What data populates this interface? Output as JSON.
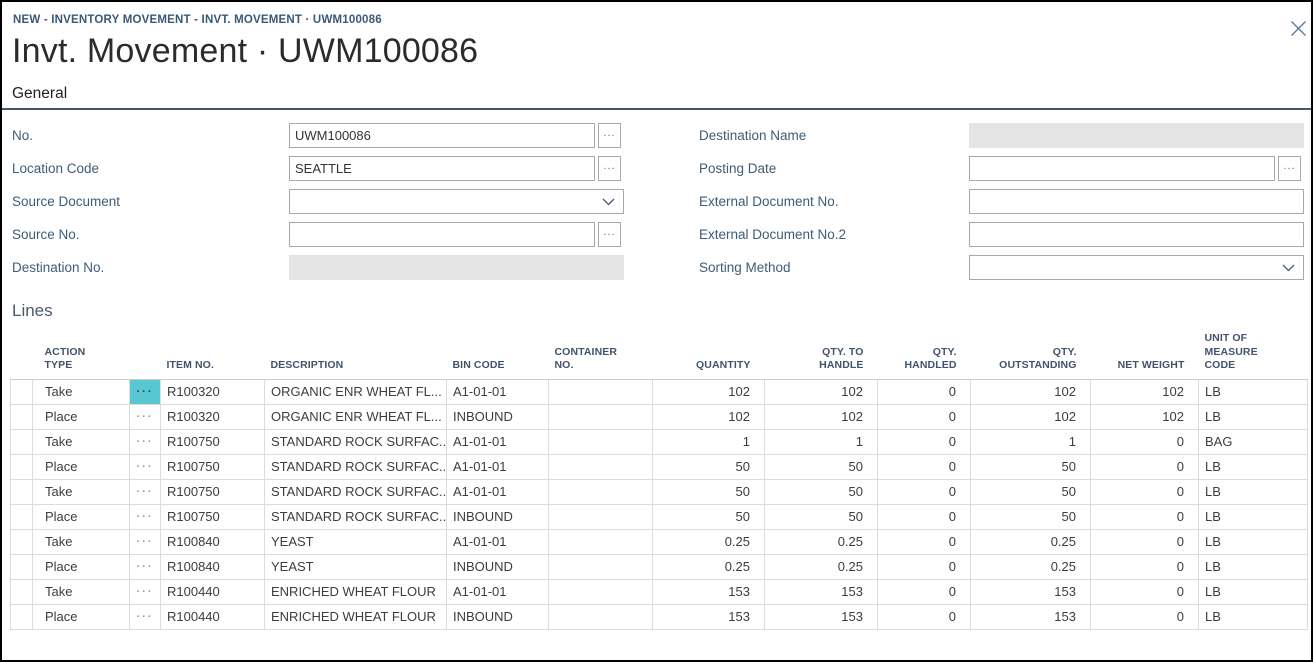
{
  "window": {
    "breadcrumb": "NEW - INVENTORY MOVEMENT - INVT. MOVEMENT · UWM100086",
    "page_title": "Invt. Movement · UWM100086",
    "close_icon": "x"
  },
  "general": {
    "section_title": "General",
    "assist_glyph": "...",
    "fields_left": [
      {
        "label": "No.",
        "value": "UWM100086",
        "type": "assist",
        "name": "no-field"
      },
      {
        "label": "Location Code",
        "value": "SEATTLE",
        "type": "assist",
        "name": "location-code-field"
      },
      {
        "label": "Source Document",
        "value": "",
        "type": "dropdown",
        "name": "source-document-select"
      },
      {
        "label": "Source No.",
        "value": "",
        "type": "assist",
        "name": "source-no-field"
      },
      {
        "label": "Destination No.",
        "value": "",
        "type": "disabled",
        "name": "destination-no-field"
      }
    ],
    "fields_right": [
      {
        "label": "Destination Name",
        "value": "",
        "type": "disabled",
        "name": "destination-name-field"
      },
      {
        "label": "Posting Date",
        "value": "",
        "type": "assist",
        "name": "posting-date-field"
      },
      {
        "label": "External Document No.",
        "value": "",
        "type": "text",
        "name": "external-document-no-field"
      },
      {
        "label": "External Document No.2",
        "value": "",
        "type": "text",
        "name": "external-document-no-2-field"
      },
      {
        "label": "Sorting Method",
        "value": "",
        "type": "dropdown",
        "name": "sorting-method-select"
      }
    ]
  },
  "lines": {
    "section_title": "Lines",
    "options_glyph": "···",
    "columns": [
      {
        "key": "action",
        "label": "ACTION\nTYPE"
      },
      {
        "key": "item",
        "label": "ITEM NO."
      },
      {
        "key": "desc",
        "label": "DESCRIPTION"
      },
      {
        "key": "bin",
        "label": "BIN CODE"
      },
      {
        "key": "container",
        "label": "CONTAINER\nNO."
      },
      {
        "key": "quantity",
        "label": "QUANTITY"
      },
      {
        "key": "qty_to_handle",
        "label": "QTY. TO\nHANDLE"
      },
      {
        "key": "qty_handled",
        "label": "QTY.\nHANDLED"
      },
      {
        "key": "qty_outstanding",
        "label": "QTY.\nOUTSTANDING"
      },
      {
        "key": "net_weight",
        "label": "NET WEIGHT"
      },
      {
        "key": "uom",
        "label": "UNIT OF\nMEASURE\nCODE"
      }
    ],
    "rows": [
      {
        "action": "Take",
        "item": "R100320",
        "desc": "ORGANIC ENR WHEAT FL...",
        "bin": "A1-01-01",
        "container": "",
        "quantity": "102",
        "qty_to_handle": "102",
        "qty_handled": "0",
        "qty_outstanding": "102",
        "net_weight": "102",
        "uom": "LB",
        "highlighted": true
      },
      {
        "action": "Place",
        "item": "R100320",
        "desc": "ORGANIC ENR WHEAT FL...",
        "bin": "INBOUND",
        "container": "",
        "quantity": "102",
        "qty_to_handle": "102",
        "qty_handled": "0",
        "qty_outstanding": "102",
        "net_weight": "102",
        "uom": "LB",
        "highlighted": false
      },
      {
        "action": "Take",
        "item": "R100750",
        "desc": "STANDARD ROCK SURFAC...",
        "bin": "A1-01-01",
        "container": "",
        "quantity": "1",
        "qty_to_handle": "1",
        "qty_handled": "0",
        "qty_outstanding": "1",
        "net_weight": "0",
        "uom": "BAG",
        "highlighted": false
      },
      {
        "action": "Place",
        "item": "R100750",
        "desc": "STANDARD ROCK SURFAC...",
        "bin": "A1-01-01",
        "container": "",
        "quantity": "50",
        "qty_to_handle": "50",
        "qty_handled": "0",
        "qty_outstanding": "50",
        "net_weight": "0",
        "uom": "LB",
        "highlighted": false
      },
      {
        "action": "Take",
        "item": "R100750",
        "desc": "STANDARD ROCK SURFAC...",
        "bin": "A1-01-01",
        "container": "",
        "quantity": "50",
        "qty_to_handle": "50",
        "qty_handled": "0",
        "qty_outstanding": "50",
        "net_weight": "0",
        "uom": "LB",
        "highlighted": false
      },
      {
        "action": "Place",
        "item": "R100750",
        "desc": "STANDARD ROCK SURFAC...",
        "bin": "INBOUND",
        "container": "",
        "quantity": "50",
        "qty_to_handle": "50",
        "qty_handled": "0",
        "qty_outstanding": "50",
        "net_weight": "0",
        "uom": "LB",
        "highlighted": false
      },
      {
        "action": "Take",
        "item": "R100840",
        "desc": "YEAST",
        "bin": "A1-01-01",
        "container": "",
        "quantity": "0.25",
        "qty_to_handle": "0.25",
        "qty_handled": "0",
        "qty_outstanding": "0.25",
        "net_weight": "0",
        "uom": "LB",
        "highlighted": false
      },
      {
        "action": "Place",
        "item": "R100840",
        "desc": "YEAST",
        "bin": "INBOUND",
        "container": "",
        "quantity": "0.25",
        "qty_to_handle": "0.25",
        "qty_handled": "0",
        "qty_outstanding": "0.25",
        "net_weight": "0",
        "uom": "LB",
        "highlighted": false
      },
      {
        "action": "Take",
        "item": "R100440",
        "desc": "ENRICHED WHEAT FLOUR",
        "bin": "A1-01-01",
        "container": "",
        "quantity": "153",
        "qty_to_handle": "153",
        "qty_handled": "0",
        "qty_outstanding": "153",
        "net_weight": "0",
        "uom": "LB",
        "highlighted": false
      },
      {
        "action": "Place",
        "item": "R100440",
        "desc": "ENRICHED WHEAT FLOUR",
        "bin": "INBOUND",
        "container": "",
        "quantity": "153",
        "qty_to_handle": "153",
        "qty_handled": "0",
        "qty_outstanding": "153",
        "net_weight": "0",
        "uom": "LB",
        "highlighted": false
      }
    ]
  },
  "colors": {
    "accent_teal": "#57c8d1",
    "label_text": "#3e5c77",
    "breadcrumb_text": "#3a5878",
    "table_header_text": "#42536b",
    "section_rule": "#44596e",
    "disabled_field_bg": "#e4e4e4",
    "input_border": "#a8a8a8",
    "grid_line": "#dcdcdc"
  }
}
